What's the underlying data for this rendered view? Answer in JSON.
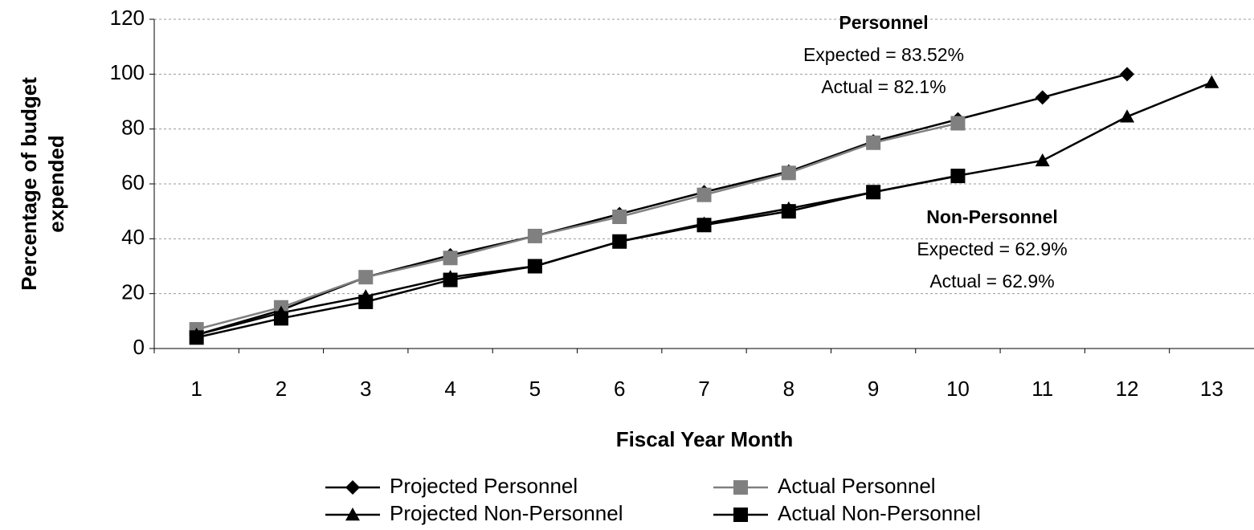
{
  "chart_data": {
    "type": "line",
    "ylabel": [
      "Percentage of budget",
      "expended"
    ],
    "xlabel": "Fiscal Year Month",
    "categories": [
      "1",
      "2",
      "3",
      "4",
      "5",
      "6",
      "7",
      "8",
      "9",
      "10",
      "11",
      "12",
      "13"
    ],
    "series": [
      {
        "name": "Projected Personnel",
        "color": "#000000",
        "marker": "diamond",
        "values": [
          5,
          14,
          26,
          34,
          41,
          49,
          57,
          64.5,
          75.5,
          83.52,
          91.5,
          100,
          null
        ]
      },
      {
        "name": "Actual Personnel",
        "color": "#808080",
        "marker": "square",
        "values": [
          7,
          15,
          26,
          33,
          41,
          48,
          56,
          64,
          75,
          82.1,
          null,
          null,
          null
        ]
      },
      {
        "name": "Projected Non-Personnel",
        "color": "#000000",
        "marker": "triangle",
        "values": [
          5,
          13,
          19,
          26,
          30,
          39,
          45.5,
          51,
          57,
          63,
          68.5,
          84.5,
          97
        ]
      },
      {
        "name": "Actual Non-Personnel",
        "color": "#000000",
        "marker": "square",
        "values": [
          4,
          11,
          17,
          25,
          30,
          39,
          45,
          50,
          57,
          62.9,
          null,
          null,
          null
        ]
      }
    ],
    "ylim": [
      0,
      120
    ],
    "yticks": [
      0,
      20,
      40,
      60,
      80,
      100,
      120
    ],
    "grid": true,
    "annotations": [
      {
        "title": "Personnel",
        "lines": [
          "Expected = 83.52%",
          "Actual  = 82.1%"
        ]
      },
      {
        "title": "Non-Personnel",
        "lines": [
          "Expected = 62.9%",
          "Actual = 62.9%"
        ]
      }
    ],
    "legend": "bottom"
  }
}
